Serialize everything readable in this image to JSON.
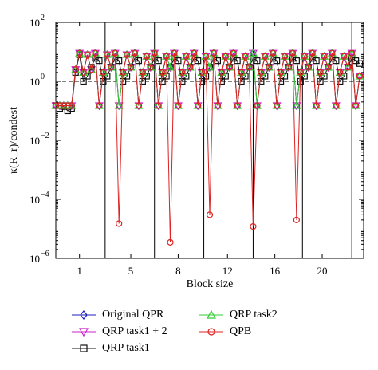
{
  "chart_data": {
    "type": "line",
    "xlabel": "Block size",
    "ylabel": "κ(R_r)/condest",
    "yscale": "log",
    "xlim": [
      0,
      78
    ],
    "ylim": [
      1e-06,
      100
    ],
    "x_ticks": [
      {
        "x": 6,
        "label": "1"
      },
      {
        "x": 19,
        "label": "5"
      },
      {
        "x": 31,
        "label": "8"
      },
      {
        "x": 43.5,
        "label": "12"
      },
      {
        "x": 55.5,
        "label": "16"
      },
      {
        "x": 67.5,
        "label": "20"
      },
      {
        "x": 80,
        "label": "24"
      }
    ],
    "y_ticks": [
      {
        "value": 1e-06,
        "base": "10",
        "exp": "−6"
      },
      {
        "value": 0.0001,
        "base": "10",
        "exp": "−4"
      },
      {
        "value": 0.01,
        "base": "10",
        "exp": "−2"
      },
      {
        "value": 1,
        "base": "10",
        "exp": "0"
      },
      {
        "value": 100,
        "base": "10",
        "exp": "2"
      }
    ],
    "reference_line": 1,
    "separators": [
      12.5,
      25,
      37.5,
      50,
      62.5,
      75
    ],
    "legend_position": "bottom",
    "grid": false,
    "series": [
      {
        "name": "Original QPR",
        "color": "#1f1fbf",
        "marker": "diamond",
        "values": [
          0.15,
          0.15,
          0.15,
          0.15,
          0.15,
          2.5,
          9,
          2,
          8,
          2.5,
          9,
          0.15,
          2,
          8,
          3,
          9,
          0.15,
          2,
          8,
          3,
          9,
          0.15,
          2,
          7,
          3,
          9,
          0.15,
          2,
          7,
          3,
          9,
          0.15,
          2,
          7,
          3,
          9,
          0.15,
          2,
          7,
          3,
          9,
          0.15,
          2,
          7,
          3,
          9,
          0.15,
          2,
          7,
          3,
          9,
          0.15,
          2,
          7,
          3,
          9,
          0.15,
          2,
          7,
          3,
          9,
          0.15,
          2,
          7,
          3,
          9,
          0.15,
          2,
          7,
          3,
          9,
          0.15,
          2,
          7,
          3,
          9,
          0.15,
          1.5
        ]
      },
      {
        "name": "QRP task1 + 2",
        "color": "#cc22cc",
        "marker": "triangle-down",
        "values": [
          0.15,
          0.15,
          0.15,
          0.15,
          0.15,
          2.5,
          9,
          2,
          8,
          2.5,
          9,
          0.15,
          2,
          8,
          3,
          9,
          0.15,
          2,
          8,
          3,
          9,
          0.15,
          2,
          7,
          3,
          9,
          0.15,
          2,
          7,
          3,
          9,
          0.15,
          2,
          7,
          3,
          9,
          0.15,
          2,
          7,
          3,
          9,
          0.15,
          2,
          7,
          3,
          9,
          0.15,
          2,
          7,
          3,
          9,
          0.15,
          2,
          7,
          3,
          9,
          0.15,
          2,
          7,
          3,
          9,
          0.15,
          2,
          7,
          3,
          9,
          0.15,
          2,
          7,
          3,
          9,
          0.15,
          2,
          7,
          3,
          9,
          0.15,
          1.5
        ]
      },
      {
        "name": "QRP task1",
        "color": "#111111",
        "marker": "square",
        "values": [
          0.15,
          0.12,
          0.14,
          0.1,
          0.12,
          2,
          8,
          1,
          1.5,
          3,
          6,
          5,
          1,
          1.5,
          3,
          6,
          5,
          1,
          1.5,
          3,
          6,
          5,
          1,
          1.5,
          3,
          6,
          5,
          1,
          1.5,
          3,
          6,
          5,
          1,
          1.5,
          3,
          6,
          5,
          1,
          1.5,
          3,
          6,
          5,
          1,
          1.5,
          3,
          6,
          5,
          1,
          1.5,
          3,
          6,
          5,
          1,
          1.5,
          3,
          6,
          5,
          1,
          1.5,
          3,
          6,
          5,
          1,
          1.5,
          3,
          6,
          5,
          1,
          1.5,
          3,
          6,
          5,
          1,
          1.5,
          3,
          6,
          5,
          4
        ]
      },
      {
        "name": "QRP task2",
        "color": "#33cc33",
        "marker": "triangle-up",
        "values": [
          0.15,
          0.15,
          0.15,
          0.15,
          0.15,
          2.5,
          9,
          2,
          8,
          2.5,
          9,
          0.15,
          2,
          8,
          3,
          9,
          0.15,
          2,
          8,
          3,
          9,
          0.15,
          2,
          7,
          3,
          9,
          0.15,
          2,
          7,
          3,
          9,
          0.15,
          2,
          7,
          3,
          9,
          0.15,
          2,
          7,
          3,
          9,
          0.15,
          2,
          7,
          3,
          9,
          0.15,
          2,
          7,
          3,
          9,
          0.15,
          2,
          7,
          3,
          9,
          0.15,
          2,
          7,
          3,
          9,
          0.15,
          2,
          7,
          3,
          9,
          0.15,
          2,
          7,
          3,
          9,
          0.15,
          2,
          7,
          3,
          9,
          0.15,
          1.5
        ]
      },
      {
        "name": "QPB",
        "color": "#dd2222",
        "marker": "circle",
        "values": [
          0.15,
          0.15,
          0.15,
          0.15,
          0.15,
          2.5,
          9,
          2,
          8,
          2.5,
          9,
          0.15,
          2,
          8,
          3,
          9,
          1.5e-05,
          2,
          8,
          3,
          9,
          0.15,
          2,
          7,
          3,
          9,
          0.15,
          2,
          7,
          3.5e-06,
          9,
          0.15,
          2,
          7,
          3,
          9,
          0.15,
          2,
          7,
          3e-05,
          9,
          0.15,
          2,
          7,
          3,
          9,
          0.15,
          2,
          7,
          3,
          1.2e-05,
          0.15,
          2,
          7,
          3,
          9,
          0.15,
          2,
          7,
          3,
          9,
          2e-05,
          2,
          7,
          3,
          9,
          0.15,
          2,
          7,
          3,
          9,
          0.15,
          2,
          7,
          3,
          9,
          0.15,
          1.5
        ]
      }
    ]
  }
}
